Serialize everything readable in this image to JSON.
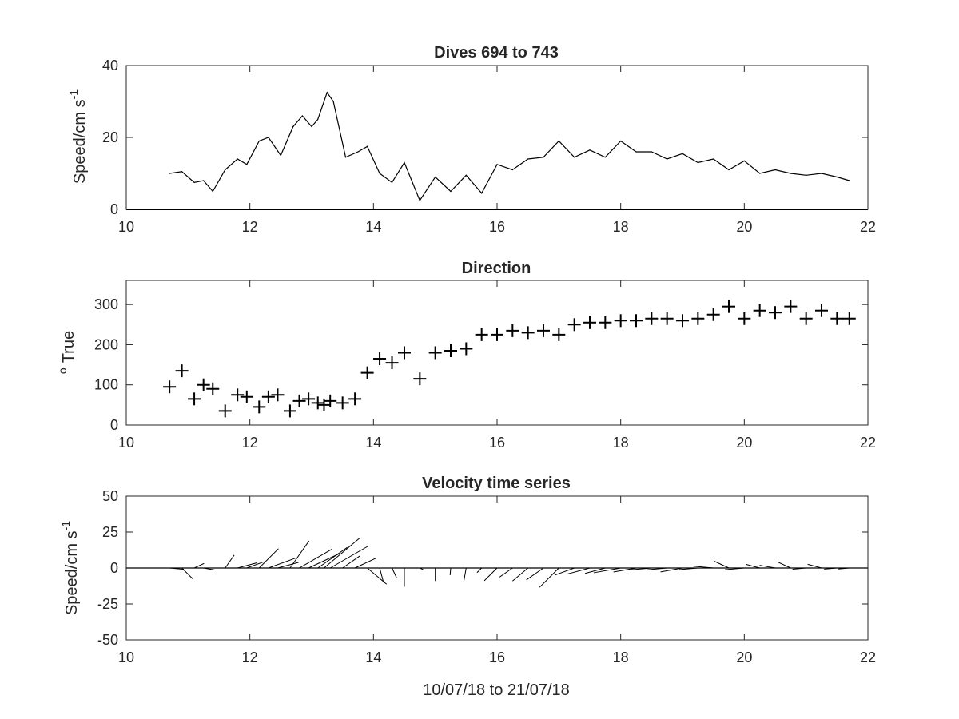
{
  "chart_data": [
    {
      "type": "line",
      "title": "Dives 694 to 743",
      "ylabel": "Speed/cm s",
      "ylabel_superscript": "-1",
      "xlabel": "",
      "xlim": [
        10,
        22
      ],
      "ylim": [
        0,
        40
      ],
      "xticks": [
        10,
        12,
        14,
        16,
        18,
        20,
        22
      ],
      "yticks": [
        0,
        20,
        40
      ],
      "grid": false,
      "series": [
        {
          "x": [
            10.7,
            10.9,
            11.1,
            11.25,
            11.4,
            11.6,
            11.8,
            11.95,
            12.15,
            12.3,
            12.5,
            12.7,
            12.85,
            13.0,
            13.1,
            13.25,
            13.35,
            13.55,
            13.75,
            13.9,
            14.1,
            14.3,
            14.5,
            14.75,
            15.0,
            15.25,
            15.5,
            15.75,
            16.0,
            16.25,
            16.5,
            16.75,
            17.0,
            17.25,
            17.5,
            17.75,
            18.0,
            18.25,
            18.5,
            18.75,
            19.0,
            19.25,
            19.5,
            19.75,
            20.0,
            20.25,
            20.5,
            20.75,
            21.0,
            21.25,
            21.5,
            21.7
          ],
          "values": [
            10,
            10.5,
            7.5,
            8,
            5,
            11,
            14,
            12.5,
            19,
            20,
            15,
            23,
            26,
            23,
            25,
            32.5,
            30,
            14.5,
            16,
            17.5,
            10,
            7.5,
            13,
            2.5,
            9,
            5,
            9.5,
            4.5,
            12.5,
            11,
            14,
            14.5,
            19,
            14.5,
            16.5,
            14.5,
            19,
            16,
            16,
            14,
            15.5,
            13,
            14,
            11,
            13.5,
            10,
            11,
            10,
            9.5,
            10,
            9,
            8
          ]
        }
      ]
    },
    {
      "type": "scatter",
      "title": "Direction",
      "ylabel": "True",
      "ylabel_prefix": "o",
      "xlabel": "",
      "marker": "+",
      "xlim": [
        10,
        22
      ],
      "ylim": [
        0,
        360
      ],
      "xticks": [
        10,
        12,
        14,
        16,
        18,
        20,
        22
      ],
      "yticks": [
        0,
        100,
        200,
        300
      ],
      "grid": false,
      "series": [
        {
          "x": [
            10.7,
            10.9,
            11.1,
            11.25,
            11.4,
            11.6,
            11.8,
            11.95,
            12.15,
            12.3,
            12.45,
            12.65,
            12.8,
            12.95,
            13.1,
            13.2,
            13.3,
            13.5,
            13.7,
            13.9,
            14.1,
            14.3,
            14.5,
            14.75,
            15.0,
            15.25,
            15.5,
            15.75,
            16.0,
            16.25,
            16.5,
            16.75,
            17.0,
            17.25,
            17.5,
            17.75,
            18.0,
            18.25,
            18.5,
            18.75,
            19.0,
            19.25,
            19.5,
            19.75,
            20.0,
            20.25,
            20.5,
            20.75,
            21.0,
            21.25,
            21.5,
            21.7
          ],
          "values": [
            95,
            135,
            65,
            100,
            90,
            35,
            75,
            70,
            45,
            70,
            75,
            35,
            60,
            65,
            55,
            50,
            60,
            55,
            65,
            130,
            165,
            155,
            180,
            115,
            180,
            185,
            190,
            225,
            225,
            235,
            230,
            235,
            225,
            250,
            255,
            255,
            260,
            260,
            265,
            265,
            260,
            265,
            275,
            295,
            265,
            285,
            280,
            295,
            265,
            285,
            265,
            265
          ]
        }
      ]
    },
    {
      "type": "stickplot",
      "title": "Velocity time series",
      "ylabel": "Speed/cm s",
      "ylabel_superscript": "-1",
      "xlabel": "10/07/18 to 21/07/18",
      "xlim": [
        10,
        22
      ],
      "ylim": [
        -50,
        50
      ],
      "xticks": [
        10,
        12,
        14,
        16,
        18,
        20,
        22
      ],
      "yticks": [
        -50,
        -25,
        0,
        25,
        50
      ],
      "grid": false,
      "series": [
        {
          "x": [
            10.7,
            10.9,
            11.1,
            11.25,
            11.4,
            11.6,
            11.8,
            11.95,
            12.15,
            12.3,
            12.45,
            12.65,
            12.8,
            12.95,
            13.1,
            13.2,
            13.3,
            13.5,
            13.7,
            13.9,
            14.1,
            14.3,
            14.5,
            14.75,
            15.0,
            15.25,
            15.5,
            15.75,
            16.0,
            16.25,
            16.5,
            16.75,
            17.0,
            17.25,
            17.5,
            17.75,
            18.0,
            18.25,
            18.5,
            18.75,
            19.0,
            19.25,
            19.5,
            19.75,
            20.0,
            20.25,
            20.5,
            20.75,
            21.0,
            21.25,
            21.5,
            21.7
          ],
          "speed": [
            10,
            10.5,
            7.5,
            8,
            5,
            11,
            14,
            12.5,
            19,
            20,
            15,
            23,
            26,
            23,
            25,
            32.5,
            30,
            14.5,
            16,
            17.5,
            10,
            7.5,
            13,
            2.5,
            9,
            5,
            9.5,
            4.5,
            12.5,
            11,
            14,
            14.5,
            19,
            14.5,
            16.5,
            14.5,
            19,
            16,
            16,
            14,
            15.5,
            13,
            14,
            11,
            13.5,
            10,
            11,
            10,
            9.5,
            10,
            9,
            8
          ],
          "direction_deg_true": [
            95,
            135,
            65,
            100,
            90,
            35,
            75,
            70,
            45,
            70,
            75,
            35,
            60,
            65,
            55,
            50,
            60,
            55,
            65,
            130,
            165,
            155,
            180,
            115,
            180,
            185,
            190,
            225,
            225,
            235,
            230,
            235,
            225,
            250,
            255,
            255,
            260,
            260,
            265,
            265,
            260,
            265,
            275,
            295,
            265,
            285,
            280,
            295,
            265,
            285,
            265,
            265
          ]
        }
      ]
    }
  ]
}
